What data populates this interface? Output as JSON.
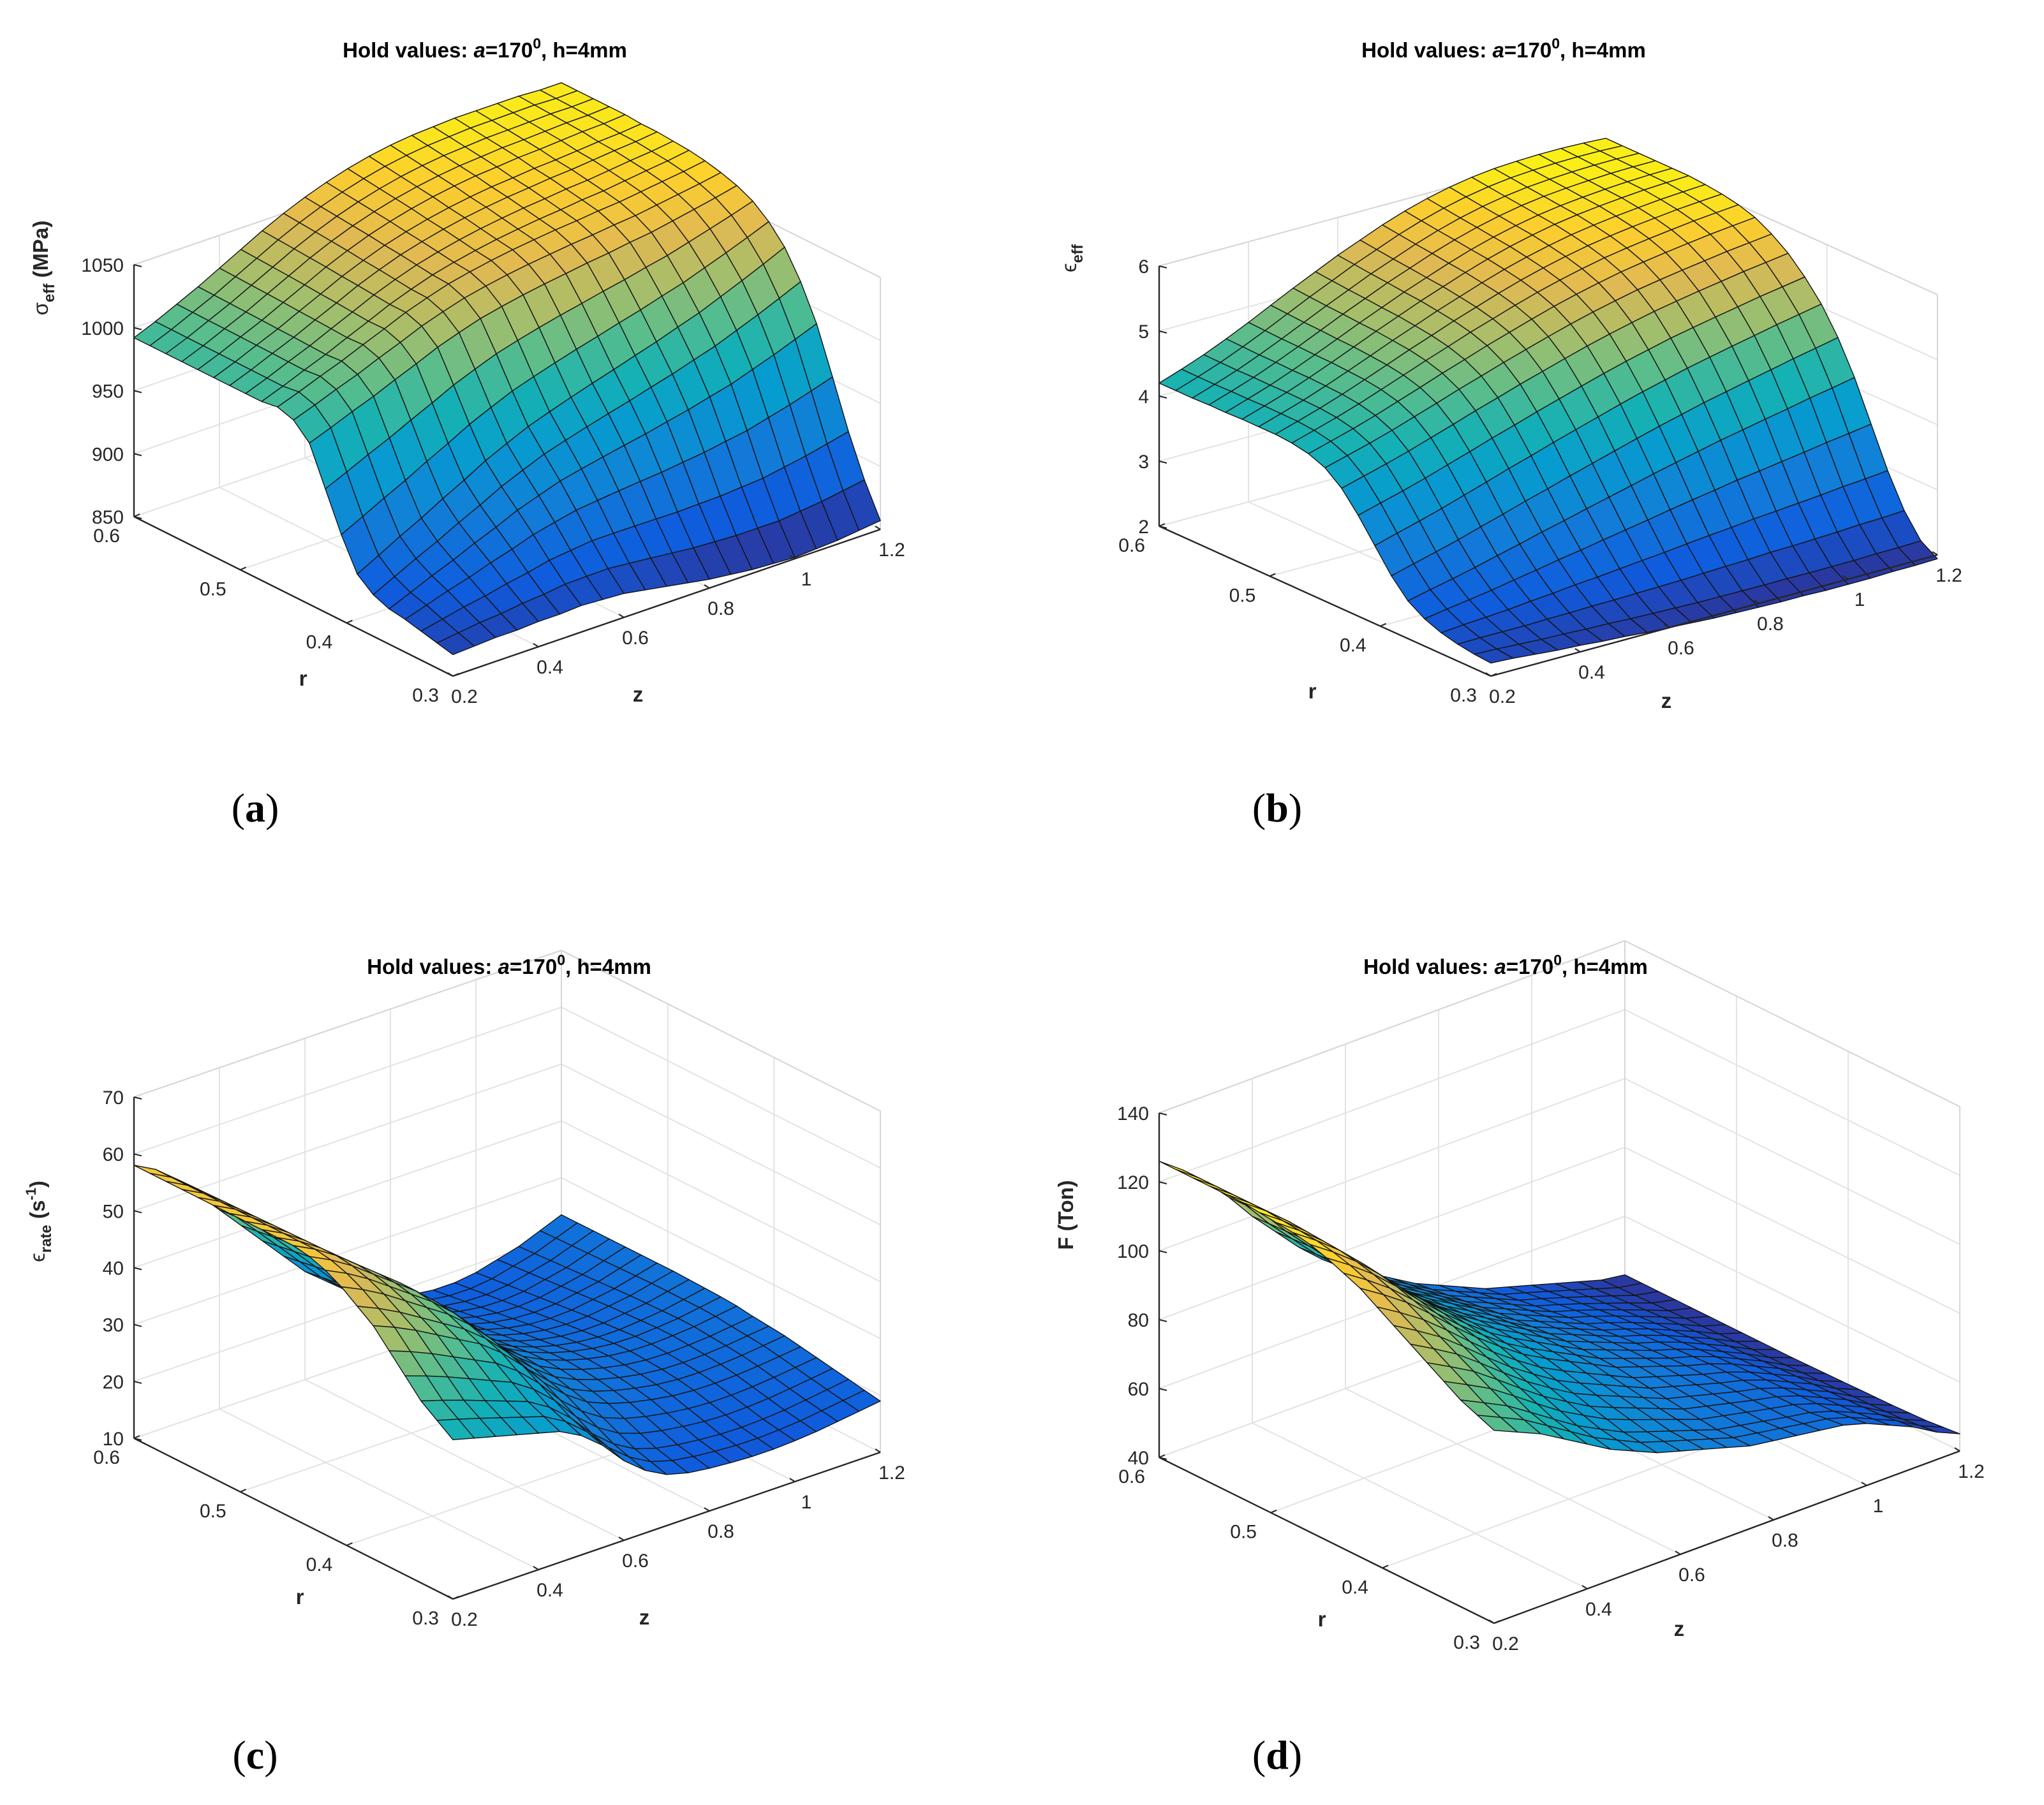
{
  "figure": {
    "captions": [
      "a",
      "b",
      "c",
      "d"
    ]
  },
  "chart_data": [
    {
      "type": "surface",
      "title_prefix": "Hold values:  ",
      "title_var": "a",
      "title_eq": "=170",
      "title_sup": "0",
      "title_suffix": ", h=4mm",
      "xlabel": "z",
      "ylabel": "r",
      "zlabel_main": "σ",
      "zlabel_sub": "eff",
      "zlabel_tail": " (MPa)",
      "xticks": [
        "0.2",
        "0.4",
        "0.6",
        "0.8",
        "1",
        "1.2"
      ],
      "yticks": [
        "0.3",
        "0.4",
        "0.5",
        "0.6"
      ],
      "zticks": [
        "850",
        "900",
        "950",
        "1000",
        "1050"
      ],
      "xlim": [
        0.2,
        1.2
      ],
      "ylim": [
        0.3,
        0.6
      ],
      "zlim": [
        850,
        1050
      ],
      "clim": [
        850,
        1085
      ],
      "surface": {
        "z_at_r03": [
          867,
          868,
          869,
          869,
          870,
          870,
          871,
          870,
          869,
          866,
          863,
          860,
          857,
          855,
          853,
          852,
          851,
          852,
          853,
          855,
          857
        ],
        "z_at_r06": [
          992,
          999,
          1007,
          1015,
          1024,
          1033,
          1042,
          1050,
          1057,
          1063,
          1068,
          1072,
          1075,
          1077,
          1078,
          1079,
          1079,
          1079,
          1079,
          1078,
          1078
        ],
        "z_col_r03": [
          867,
          870,
          873,
          876,
          878,
          883,
          893,
          918,
          948,
          978,
          990,
          994,
          992,
          992,
          992,
          992,
          992,
          992,
          992,
          992,
          992
        ],
        "z_col_r06": [
          857,
          883,
          915,
          952,
          988,
          1015,
          1036,
          1050,
          1060,
          1066,
          1070,
          1073,
          1075,
          1076,
          1077,
          1077,
          1078,
          1078,
          1078,
          1078,
          1078
        ]
      }
    },
    {
      "type": "surface",
      "title_prefix": "Hold values:  ",
      "title_var": "a",
      "title_eq": "=170",
      "title_sup": "0",
      "title_suffix": ", h=4mm",
      "xlabel": "z",
      "ylabel": "r",
      "zlabel_main": "ϵ",
      "zlabel_sub": "eff",
      "zlabel_tail": "",
      "xticks": [
        "0.2",
        "0.4",
        "0.6",
        "0.8",
        "1",
        "1.2"
      ],
      "yticks": [
        "0.3",
        "0.4",
        "0.5",
        "0.6"
      ],
      "zticks": [
        "2",
        "3",
        "4",
        "5",
        "6"
      ],
      "xlim": [
        0.2,
        1.2
      ],
      "ylim": [
        0.3,
        0.6
      ],
      "zlim": [
        2,
        6
      ],
      "clim": [
        1.8,
        6.2
      ],
      "surface": {
        "z_at_r03": [
          2.2,
          2.18,
          2.15,
          2.12,
          2.1,
          2.07,
          2.05,
          2.02,
          2.0,
          1.98,
          1.96,
          1.95,
          1.94,
          1.93,
          1.93,
          1.92,
          1.92,
          1.92,
          1.93,
          1.93,
          1.94
        ],
        "z_at_r06": [
          4.2,
          4.32,
          4.45,
          4.6,
          4.76,
          4.93,
          5.1,
          5.26,
          5.42,
          5.56,
          5.7,
          5.82,
          5.92,
          6.0,
          6.06,
          6.1,
          6.12,
          6.13,
          6.13,
          6.12,
          6.1
        ],
        "z_col_r03": [
          2.2,
          2.22,
          2.26,
          2.32,
          2.42,
          2.58,
          2.85,
          3.2,
          3.55,
          3.85,
          4.05,
          4.15,
          4.2,
          4.22,
          4.22,
          4.22,
          4.21,
          4.21,
          4.2,
          4.2,
          4.2
        ],
        "z_col_r06": [
          1.94,
          2.1,
          2.45,
          2.95,
          3.55,
          4.15,
          4.65,
          5.05,
          5.35,
          5.6,
          5.78,
          5.92,
          6.0,
          6.05,
          6.08,
          6.1,
          6.1,
          6.1,
          6.1,
          6.1,
          6.1
        ]
      }
    },
    {
      "type": "surface",
      "title_prefix": "Hold values:  ",
      "title_var": "a",
      "title_eq": "=170",
      "title_sup": "0",
      "title_suffix": ", h=4mm",
      "xlabel": "z",
      "ylabel": "r",
      "zlabel_main": "ϵ",
      "zlabel_sub": "rate",
      "zlabel_tail": " (s",
      "zlabel_sup": "-1",
      "zlabel_close": ")",
      "xticks": [
        "0.2",
        "0.4",
        "0.6",
        "0.8",
        "1",
        "1.2"
      ],
      "yticks": [
        "0.3",
        "0.4",
        "0.5",
        "0.6"
      ],
      "zticks": [
        "10",
        "20",
        "30",
        "40",
        "50",
        "60",
        "70"
      ],
      "xlim": [
        0.2,
        1.2
      ],
      "ylim": [
        0.3,
        0.6
      ],
      "zlim": [
        10,
        70
      ],
      "clim": [
        10,
        62
      ],
      "surface": {
        "z_at_r03": [
          38,
          37,
          36,
          35,
          34,
          33,
          31,
          28,
          24,
          21,
          19,
          18,
          17.5,
          17.2,
          17,
          17,
          17.2,
          17.5,
          18,
          18.5,
          19
        ],
        "z_at_r06": [
          58,
          56,
          53,
          49,
          45,
          41,
          37,
          33,
          29,
          26,
          23,
          21,
          19.5,
          18.5,
          18,
          18,
          18.5,
          19.5,
          20.5,
          22,
          23.5
        ],
        "z_col_r03": [
          38,
          40,
          42,
          45,
          48,
          51,
          53,
          55,
          56.5,
          57.5,
          58,
          58,
          58,
          58,
          58,
          58,
          58,
          58,
          58,
          58,
          58
        ],
        "z_col_r06": [
          19,
          19.5,
          20,
          20.5,
          21,
          21.5,
          22,
          22.3,
          22.6,
          23,
          23.2,
          23.3,
          23.4,
          23.5,
          23.5,
          23.5,
          23.5,
          23.5,
          23.5,
          23.5,
          23.5
        ]
      }
    },
    {
      "type": "surface",
      "title_prefix": "Hold values:  ",
      "title_var": "a",
      "title_eq": "=170",
      "title_sup": "0",
      "title_suffix": ", h=4mm",
      "xlabel": "z",
      "ylabel": "r",
      "zlabel_main": "F (Ton)",
      "zlabel_sub": "",
      "zlabel_tail": "",
      "xticks": [
        "0.2",
        "0.4",
        "0.6",
        "0.8",
        "1",
        "1.2"
      ],
      "yticks": [
        "0.3",
        "0.4",
        "0.5",
        "0.6"
      ],
      "zticks": [
        "40",
        "60",
        "80",
        "100",
        "120",
        "140"
      ],
      "xlim": [
        0.2,
        1.2
      ],
      "ylim": [
        0.3,
        0.6
      ],
      "zlim": [
        40,
        140
      ],
      "clim": [
        40,
        126
      ],
      "surface": {
        "z_at_r03": [
          96,
          93,
          90,
          86,
          82,
          78,
          75,
          72,
          70,
          68,
          66,
          64,
          63,
          62,
          61,
          60,
          58,
          55,
          52,
          48,
          45
        ],
        "z_at_r06": [
          126,
          121,
          115,
          108,
          100,
          93,
          86,
          80,
          75,
          71,
          67,
          63,
          60,
          57,
          54,
          52,
          50,
          48,
          46,
          44,
          43
        ],
        "z_col_r03": [
          96,
          98,
          100,
          103,
          106,
          109,
          112,
          115,
          118,
          120,
          122,
          123.5,
          124.5,
          125,
          125.5,
          126,
          126,
          126,
          126,
          126,
          126
        ],
        "z_col_r06": [
          45,
          44.5,
          44,
          43.8,
          43.6,
          43.5,
          43.4,
          43.3,
          43.2,
          43.1,
          43,
          43,
          43,
          43,
          43,
          43,
          43,
          43,
          43,
          43,
          43
        ]
      }
    }
  ]
}
